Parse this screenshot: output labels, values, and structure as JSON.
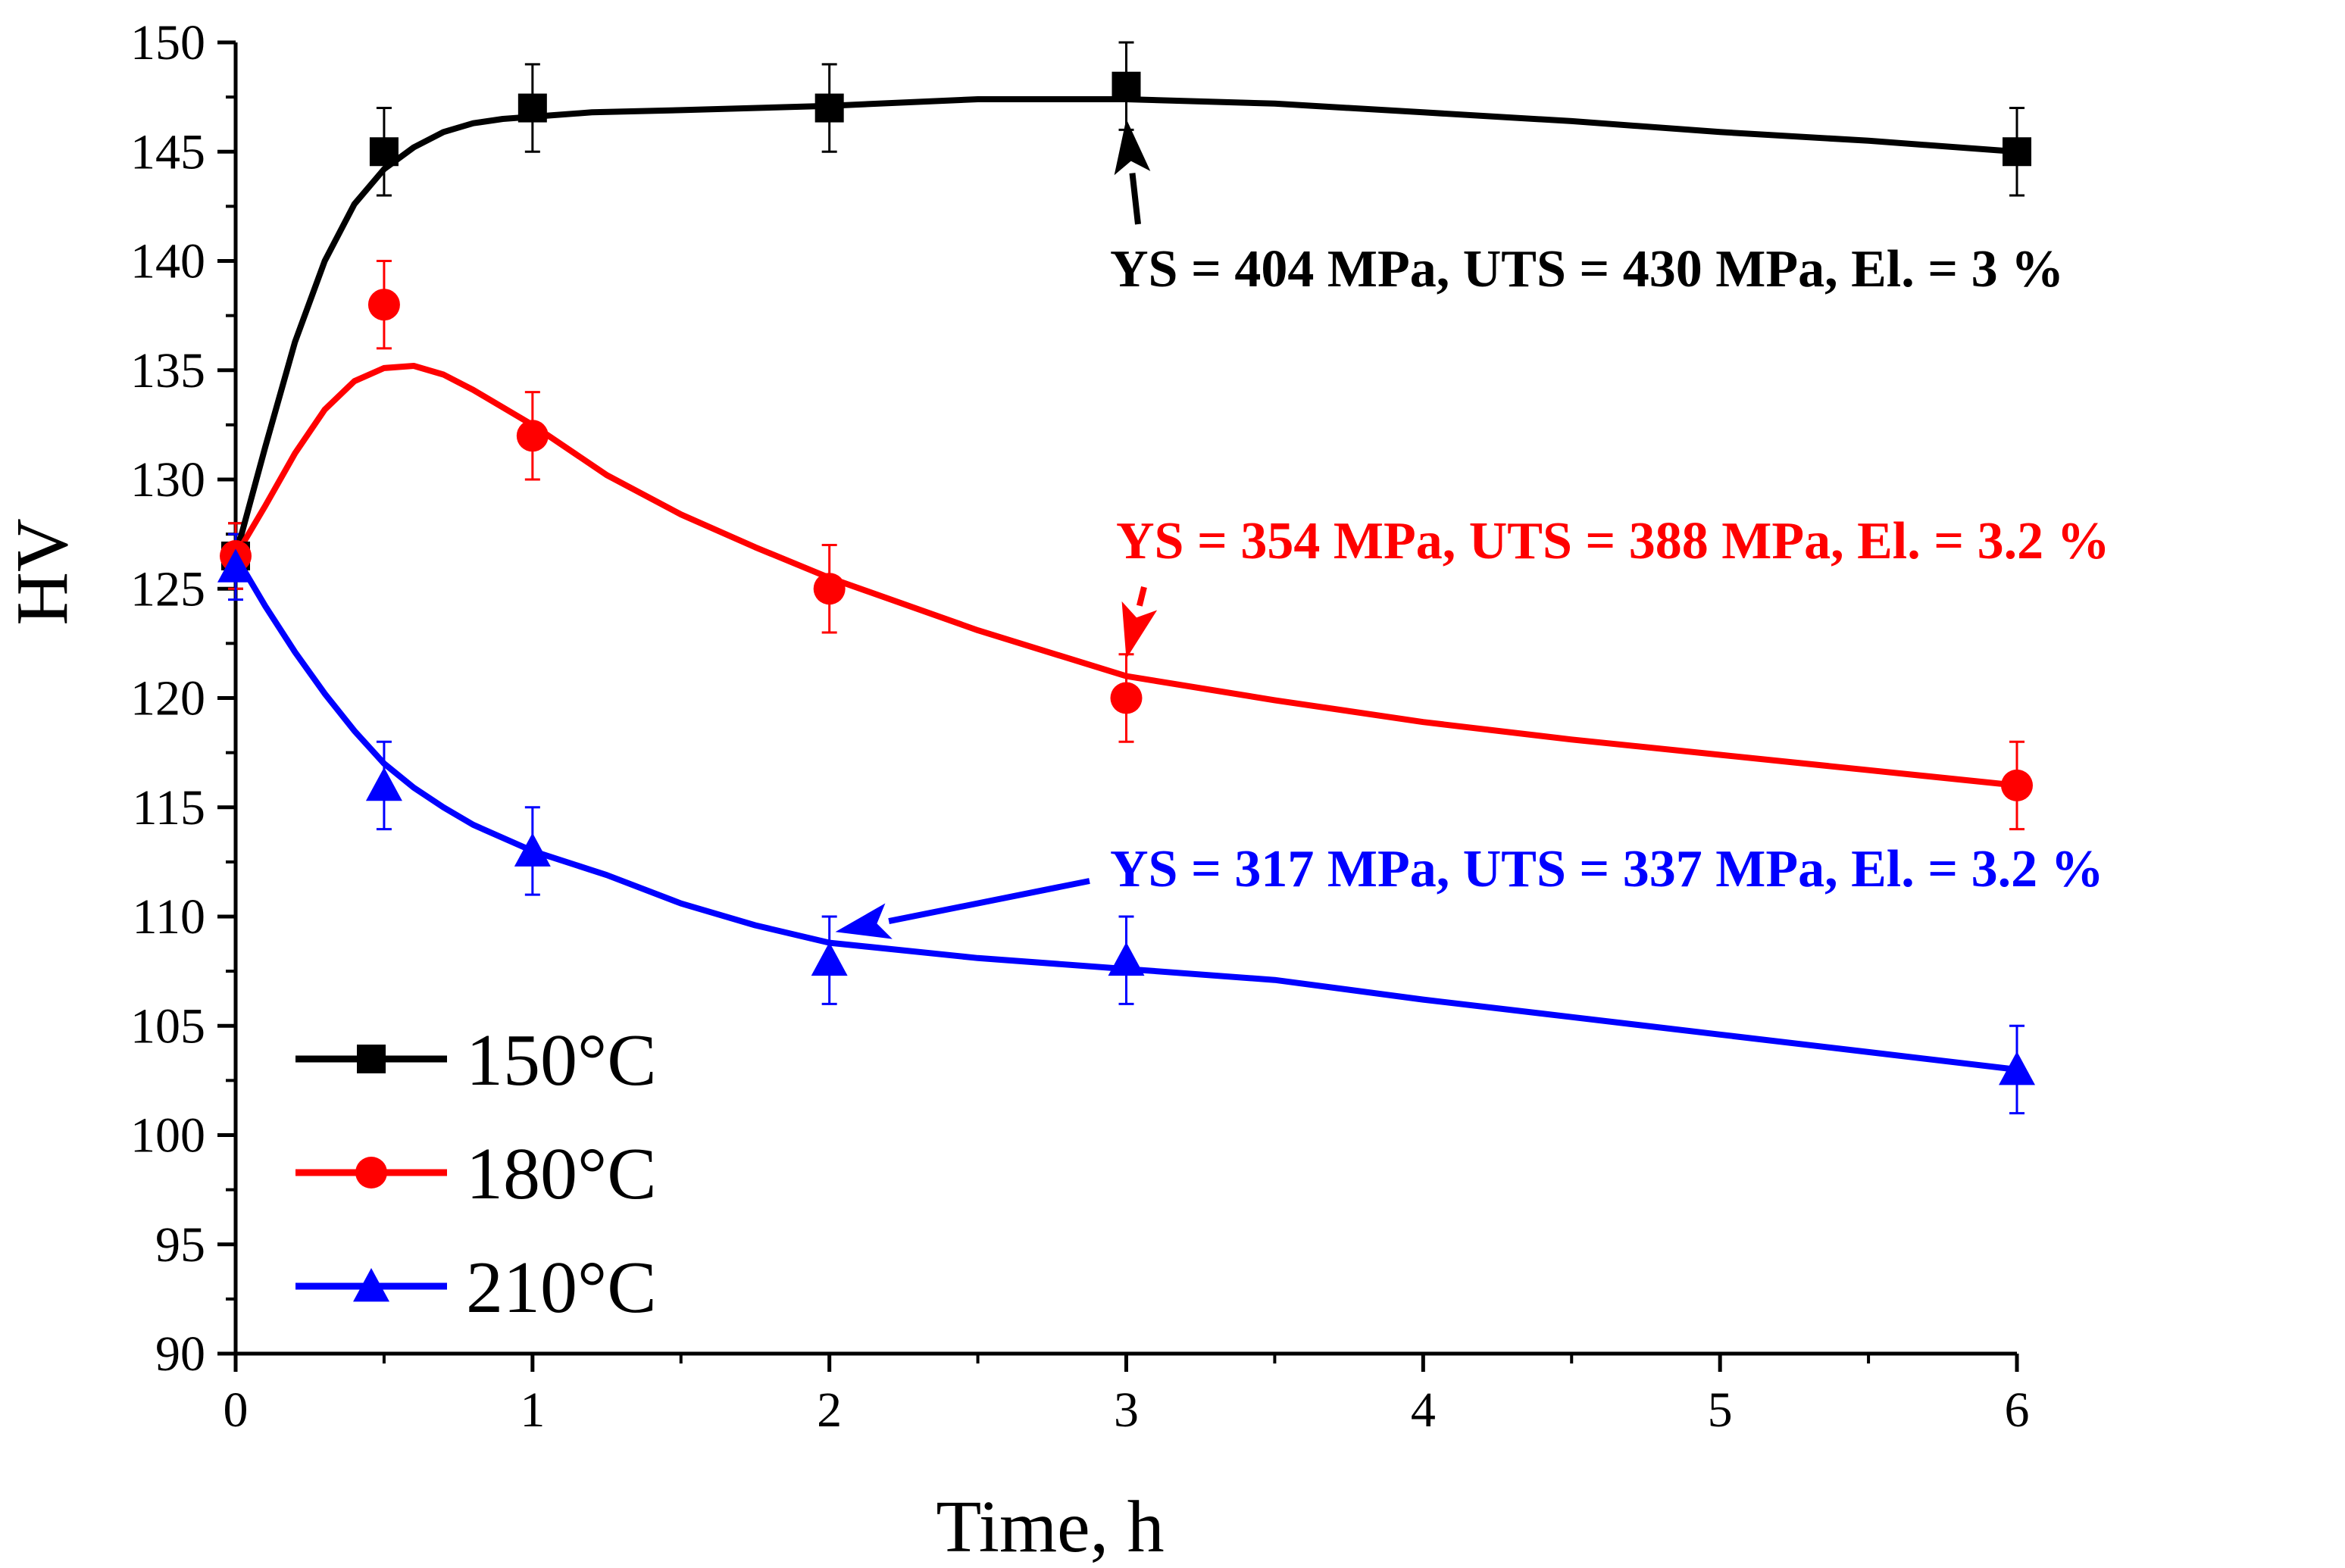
{
  "chart_data": {
    "type": "line",
    "xlabel": "Time, h",
    "ylabel": "HV",
    "xlim": [
      0,
      6
    ],
    "ylim": [
      90,
      150
    ],
    "x_ticks": [
      0,
      1,
      2,
      3,
      4,
      5,
      6
    ],
    "y_ticks": [
      90,
      95,
      100,
      105,
      110,
      115,
      120,
      125,
      130,
      135,
      140,
      145,
      150
    ],
    "grid": false,
    "legend_position": "bottom-left",
    "series": [
      {
        "name": "150°C",
        "color": "#000000",
        "marker": "square",
        "x": [
          0,
          0.5,
          1,
          2,
          3,
          6
        ],
        "y": [
          126.5,
          145,
          147,
          147,
          148,
          145
        ],
        "error": [
          1.5,
          2,
          2,
          2,
          2,
          2
        ],
        "fit": [
          [
            0,
            126.5
          ],
          [
            0.1,
            131.5
          ],
          [
            0.2,
            136.3
          ],
          [
            0.3,
            140
          ],
          [
            0.4,
            142.6
          ],
          [
            0.5,
            144.2
          ],
          [
            0.6,
            145.2
          ],
          [
            0.7,
            145.9
          ],
          [
            0.8,
            146.3
          ],
          [
            0.9,
            146.5
          ],
          [
            1,
            146.6
          ],
          [
            1.2,
            146.8
          ],
          [
            1.5,
            146.9
          ],
          [
            2,
            147.1
          ],
          [
            2.5,
            147.4
          ],
          [
            3,
            147.4
          ],
          [
            3.5,
            147.2
          ],
          [
            4,
            146.8
          ],
          [
            4.5,
            146.4
          ],
          [
            5,
            145.9
          ],
          [
            5.5,
            145.5
          ],
          [
            6,
            145
          ]
        ]
      },
      {
        "name": "180°C",
        "color": "#ff0000",
        "marker": "circle",
        "x": [
          0,
          0.5,
          1,
          2,
          3,
          6
        ],
        "y": [
          126.5,
          138,
          132,
          125,
          120,
          116
        ],
        "error": [
          1.5,
          2,
          2,
          2,
          2,
          2
        ],
        "fit": [
          [
            0,
            126.5
          ],
          [
            0.1,
            128.8
          ],
          [
            0.2,
            131.2
          ],
          [
            0.3,
            133.2
          ],
          [
            0.4,
            134.5
          ],
          [
            0.5,
            135.1
          ],
          [
            0.6,
            135.2
          ],
          [
            0.7,
            134.8
          ],
          [
            0.8,
            134.1
          ],
          [
            1,
            132.5
          ],
          [
            1.25,
            130.2
          ],
          [
            1.5,
            128.4
          ],
          [
            1.75,
            126.9
          ],
          [
            2,
            125.5
          ],
          [
            2.5,
            123.1
          ],
          [
            3,
            121
          ],
          [
            3.5,
            119.9
          ],
          [
            4,
            118.9
          ],
          [
            4.5,
            118.1
          ],
          [
            5,
            117.4
          ],
          [
            5.5,
            116.7
          ],
          [
            6,
            116
          ]
        ]
      },
      {
        "name": "210°C",
        "color": "#0000ff",
        "marker": "triangle",
        "x": [
          0,
          0.5,
          1,
          2,
          3,
          6
        ],
        "y": [
          126,
          116,
          113,
          108,
          108,
          103
        ],
        "error": [
          1.5,
          2,
          2,
          2,
          2,
          2
        ],
        "fit": [
          [
            0,
            126.5
          ],
          [
            0.1,
            124.2
          ],
          [
            0.2,
            122.1
          ],
          [
            0.3,
            120.2
          ],
          [
            0.4,
            118.5
          ],
          [
            0.5,
            117
          ],
          [
            0.6,
            115.9
          ],
          [
            0.7,
            115
          ],
          [
            0.8,
            114.2
          ],
          [
            1,
            113
          ],
          [
            1.25,
            111.9
          ],
          [
            1.5,
            110.6
          ],
          [
            1.75,
            109.6
          ],
          [
            2,
            108.8
          ],
          [
            2.5,
            108.1
          ],
          [
            3,
            107.6
          ],
          [
            3.5,
            107.1
          ],
          [
            4,
            106.2
          ],
          [
            4.5,
            105.4
          ],
          [
            5,
            104.6
          ],
          [
            5.5,
            103.8
          ],
          [
            6,
            103
          ]
        ]
      }
    ],
    "annotations": [
      {
        "text": "YS = 404 MPa, UTS = 430 MPa, El. = 3 %",
        "color": "#000000",
        "arrow_tip": [
          3,
          146.5
        ]
      },
      {
        "text": "YS = 354 MPa, UTS = 388 MPa, El. = 3.2 %",
        "color": "#ff0000",
        "arrow_tip": [
          3,
          121.8
        ]
      },
      {
        "text": "YS = 317 MPa, UTS = 337 MPa, El. = 3.2 %",
        "color": "#0000ff",
        "arrow_tip": [
          2.02,
          109.3
        ]
      }
    ]
  }
}
